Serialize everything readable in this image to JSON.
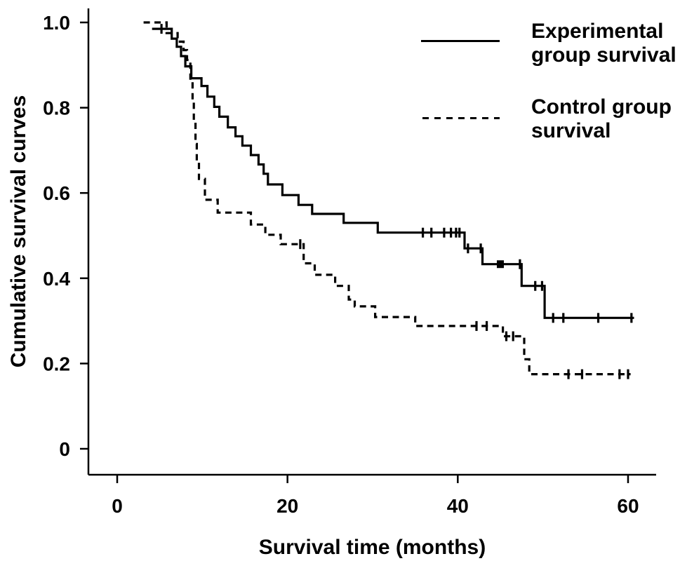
{
  "figure": {
    "background": "#ffffff",
    "ink_color": "#000000"
  },
  "chart_data": {
    "type": "line",
    "subtype": "kaplan-meier-survival-step",
    "title": "",
    "xlabel": "Survival time (months)",
    "ylabel": "Cumulative survival curves",
    "xlim": [
      0,
      60
    ],
    "ylim": [
      0,
      1.0
    ],
    "x_ticks": [
      0,
      20,
      40,
      60
    ],
    "x_tick_labels": [
      "0",
      "20",
      "40",
      "60"
    ],
    "y_ticks": [
      0,
      0.2,
      0.4,
      0.6,
      0.8,
      1.0
    ],
    "y_tick_labels": [
      "0",
      "0.2",
      "0.4",
      "0.6",
      "0.8",
      "1.0"
    ],
    "grid": false,
    "legend_position": "top-right",
    "censor_mark_style": "vertical-tick",
    "series": [
      {
        "name": "Experimental group survival",
        "line_style": "solid",
        "start": [
          4.1,
          0.985
        ],
        "steps": [
          [
            6.4,
            0.962
          ],
          [
            7.0,
            0.943
          ],
          [
            7.5,
            0.921
          ],
          [
            8.0,
            0.897
          ],
          [
            8.7,
            0.869
          ],
          [
            9.9,
            0.851
          ],
          [
            10.6,
            0.826
          ],
          [
            11.4,
            0.802
          ],
          [
            12.0,
            0.779
          ],
          [
            13.0,
            0.754
          ],
          [
            13.9,
            0.733
          ],
          [
            14.7,
            0.711
          ],
          [
            15.7,
            0.689
          ],
          [
            16.6,
            0.667
          ],
          [
            17.2,
            0.645
          ],
          [
            17.7,
            0.62
          ],
          [
            19.4,
            0.595
          ],
          [
            21.3,
            0.572
          ],
          [
            22.9,
            0.551
          ],
          [
            26.6,
            0.53
          ],
          [
            30.6,
            0.507
          ],
          [
            40.8,
            0.47
          ],
          [
            42.9,
            0.433
          ],
          [
            47.5,
            0.382
          ],
          [
            50.2,
            0.307
          ]
        ],
        "end_month": 60.7,
        "censor_marks": [
          [
            5.2,
            0.985
          ],
          [
            35.9,
            0.507
          ],
          [
            36.9,
            0.507
          ],
          [
            38.4,
            0.507
          ],
          [
            39.2,
            0.507
          ],
          [
            39.8,
            0.507
          ],
          [
            40.2,
            0.507
          ],
          [
            41.2,
            0.47
          ],
          [
            42.7,
            0.47
          ],
          [
            45.0,
            0.433,
            "square"
          ],
          [
            47.3,
            0.433
          ],
          [
            49.1,
            0.382
          ],
          [
            49.9,
            0.382
          ],
          [
            51.2,
            0.307
          ],
          [
            52.4,
            0.307
          ],
          [
            56.5,
            0.307
          ],
          [
            60.4,
            0.307
          ]
        ]
      },
      {
        "name": "Control group survival",
        "line_style": "dashed",
        "start": [
          3.1,
          1.0
        ],
        "steps": [
          [
            5.8,
            0.975
          ],
          [
            7.1,
            0.955
          ],
          [
            7.8,
            0.935
          ],
          [
            8.2,
            0.912
          ],
          [
            8.6,
            0.863
          ],
          [
            8.85,
            0.814
          ],
          [
            9.0,
            0.765
          ],
          [
            9.2,
            0.715
          ],
          [
            9.35,
            0.674
          ],
          [
            9.6,
            0.633
          ],
          [
            10.3,
            0.584
          ],
          [
            11.8,
            0.554
          ],
          [
            15.7,
            0.526
          ],
          [
            17.4,
            0.502
          ],
          [
            19.2,
            0.48
          ],
          [
            21.9,
            0.435
          ],
          [
            23.2,
            0.408
          ],
          [
            25.6,
            0.382
          ],
          [
            27.2,
            0.35
          ],
          [
            27.9,
            0.334
          ],
          [
            30.3,
            0.309
          ],
          [
            35.0,
            0.288
          ],
          [
            45.3,
            0.264
          ],
          [
            47.8,
            0.21
          ],
          [
            48.4,
            0.175
          ]
        ],
        "end_month": 60.3,
        "censor_marks": [
          [
            21.5,
            0.48
          ],
          [
            42.2,
            0.288
          ],
          [
            43.4,
            0.288
          ],
          [
            45.7,
            0.264
          ],
          [
            46.5,
            0.264
          ],
          [
            53.0,
            0.175
          ],
          [
            54.6,
            0.175
          ],
          [
            59.0,
            0.175
          ],
          [
            60.0,
            0.175
          ]
        ]
      }
    ]
  },
  "legend": {
    "items": [
      {
        "label_lines": [
          "Experimental",
          "group survival"
        ],
        "line_style": "solid"
      },
      {
        "label_lines": [
          "Control group",
          "survival"
        ],
        "line_style": "dashed"
      }
    ]
  }
}
